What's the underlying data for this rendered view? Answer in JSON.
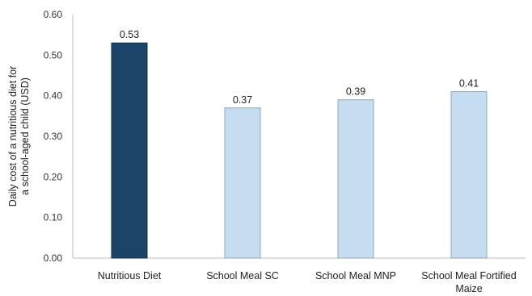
{
  "chart_data": {
    "type": "bar",
    "categories": [
      [
        "Nutritious Diet"
      ],
      [
        "School Meal SC"
      ],
      [
        "School Meal MNP"
      ],
      [
        "School Meal Fortified",
        "Maize"
      ]
    ],
    "values": [
      0.53,
      0.37,
      0.39,
      0.41
    ],
    "data_labels": [
      "0.53",
      "0.37",
      "0.39",
      "0.41"
    ],
    "ylabel_lines": [
      "Daily cost of a nutritious diet for",
      "a school-aged child (USD)"
    ],
    "ylim": [
      0,
      0.6
    ],
    "yticks": [
      "0.00",
      "0.10",
      "0.20",
      "0.30",
      "0.40",
      "0.50",
      "0.60"
    ],
    "grid": false,
    "legend": "none",
    "colors": {
      "highlight": "#1b4466",
      "highlight_edge": "#12324d",
      "other": "#c5dcf1",
      "other_edge": "#8fa9bf",
      "axis": "#bdbdbd"
    }
  }
}
